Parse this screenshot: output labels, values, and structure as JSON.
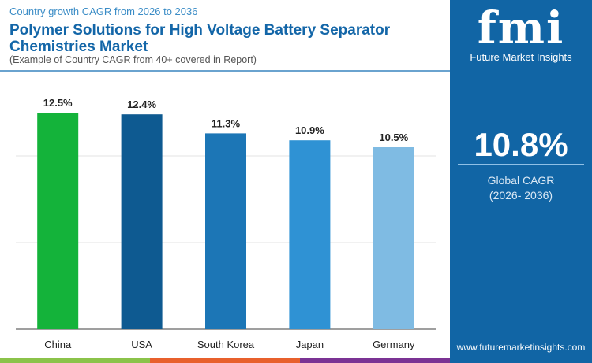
{
  "header": {
    "subtitle": "Country growth CAGR from 2026 to 2036",
    "title": "Polymer Solutions for High Voltage Battery Separator Chemistries Market",
    "note": "(Example of Country CAGR from 40+ covered in Report)"
  },
  "sidebar": {
    "logo_text": "fmi",
    "logo_subtitle": "Future Market Insights",
    "global_value": "10.8%",
    "global_label": "Global CAGR",
    "global_period": "(2026- 2036)",
    "url": "www.futuremarketinsights.com",
    "background": "#1165a5"
  },
  "chart_data": {
    "type": "bar",
    "categories": [
      "China",
      "USA",
      "South Korea",
      "Japan",
      "Germany"
    ],
    "values": [
      12.5,
      12.4,
      11.3,
      10.9,
      10.5
    ],
    "labels": [
      "12.5%",
      "12.4%",
      "11.3%",
      "10.9%",
      "10.5%"
    ],
    "colors": [
      "#14b33a",
      "#0e5a91",
      "#1c76b6",
      "#2f92d4",
      "#7fbbe3"
    ],
    "ylim": [
      0,
      14
    ],
    "grid": true,
    "xlabel": "",
    "ylabel": ""
  },
  "footer_stripes": [
    "#8bc34a",
    "#e8602c",
    "#7b3294"
  ]
}
